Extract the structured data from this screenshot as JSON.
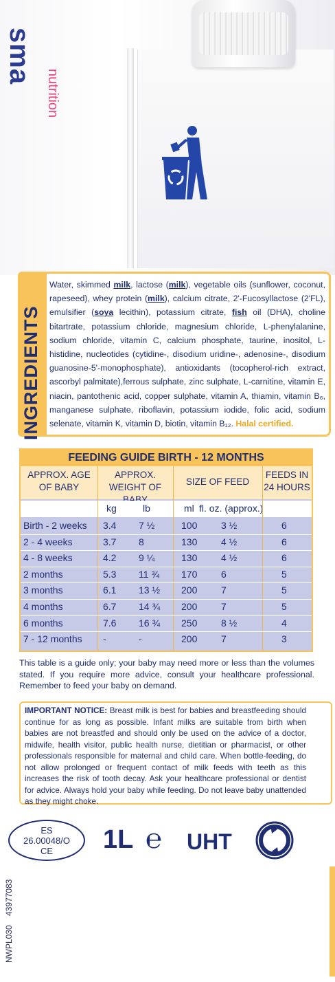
{
  "brand": {
    "name": "sma",
    "sub": "nutrition"
  },
  "icons": {
    "recycle": "tidyman-bin-icon",
    "green_dot": "green-dot-icon"
  },
  "colors": {
    "primary": "#1f2d73",
    "accent": "#f7c35a",
    "table_body": "#c6cae6",
    "halal": "#f0a81e"
  },
  "ingredients": {
    "title": "INGREDIENTS",
    "p1": "Water, skimmed ",
    "milk1": "milk",
    "p2": ", lactose (",
    "milk2": "milk",
    "p3": "), vegetable oils (sunflower, coconut, rapeseed), whey protein (",
    "milk3": "milk",
    "p4": "), calcium citrate, 2'-Fucosyllactose (2'FL), emulsifier (",
    "soya": "soya",
    "p5": " lecithin), potassium citrate, ",
    "fish": "fish",
    "p6": " oil (DHA), choline bitartrate, potassium chloride, magnesium chloride, L-phenylalanine, sodium chloride, vitamin C, calcium phosphate, taurine, inositol, L-histidine, nucleotides (cytidine-, disodium uridine-, adenosine-, disodium guanosine-5'-monophosphate), antioxidants (tocopherol-rich extract, ascorbyl palmitate),ferrous sulphate, zinc sulphate, L-carnitine, vitamin E, niacin, pantothenic acid, copper sulphate, vitamin A, thiamin, vitamin B₆, manganese sulphate, riboflavin, potassium iodide, folic acid, sodium selenate, vitamin K, vitamin D, biotin, vitamin B₁₂. ",
    "halal": "Halal certified."
  },
  "feeding": {
    "title": "FEEDING GUIDE BIRTH - 12 MONTHS",
    "headers": {
      "age": "APPROX. AGE OF BABY",
      "weight": "APPROX. WEIGHT OF BABY",
      "size": "SIZE OF FEED",
      "feeds": "FEEDS IN 24 HOURS"
    },
    "units": {
      "kg": "kg",
      "lb": "lb",
      "ml": "ml",
      "floz": "fl. oz. (approx.)"
    },
    "rows": [
      {
        "age": "Birth - 2 weeks",
        "kg": "3.4",
        "lb": "7 ½",
        "ml": "100",
        "oz": "3 ½",
        "feeds": "6"
      },
      {
        "age": "2 - 4 weeks",
        "kg": "3.7",
        "lb": "8",
        "ml": "130",
        "oz": "4 ½",
        "feeds": "6"
      },
      {
        "age": "4 - 8 weeks",
        "kg": "4.2",
        "lb": "9 ¼",
        "ml": "130",
        "oz": "4 ½",
        "feeds": "6"
      },
      {
        "age": "2 months",
        "kg": "5.3",
        "lb": "11 ¾",
        "ml": "170",
        "oz": "6",
        "feeds": "5"
      },
      {
        "age": "3 months",
        "kg": "6.1",
        "lb": "13 ½",
        "ml": "200",
        "oz": "7",
        "feeds": "5"
      },
      {
        "age": "4 months",
        "kg": "6.7",
        "lb": "14 ¾",
        "ml": "200",
        "oz": "7",
        "feeds": "5"
      },
      {
        "age": "6 months",
        "kg": "7.6",
        "lb": "16 ¾",
        "ml": "250",
        "oz": "8 ½",
        "feeds": "4"
      },
      {
        "age": "7 - 12 months",
        "kg": "-",
        "lb": "-",
        "ml": "200",
        "oz": "7",
        "feeds": "3"
      }
    ],
    "note": "This table is a guide only; your baby may need more or less than the volumes stated. If you require more advice, consult your healthcare professional. Remember to feed your baby on demand."
  },
  "notice": {
    "label": "IMPORTANT NOTICE:",
    "text": " Breast milk is best for babies and breastfeeding should continue for as long as possible. Infant milks are suitable from birth when babies are not breastfed and should only be used on the advice of a doctor, midwife, health visitor, public health nurse, dietitian or pharmacist, or other professionals responsible for maternal and child care. When bottle-feeding, do not allow prolonged or frequent contact of milk feeds with teeth as this increases the risk of tooth decay. Ask your healthcare professional or dentist for advice. Always hold your baby while feeding. Do not leave baby unattended as they might choke."
  },
  "bottom": {
    "es_line1": "ES",
    "es_line2": "26.00048/O",
    "es_line3": "CE",
    "volume": "1L",
    "estimated": "℮",
    "uht": "UHT",
    "code1": "NWPL030",
    "code2": "43977083"
  }
}
